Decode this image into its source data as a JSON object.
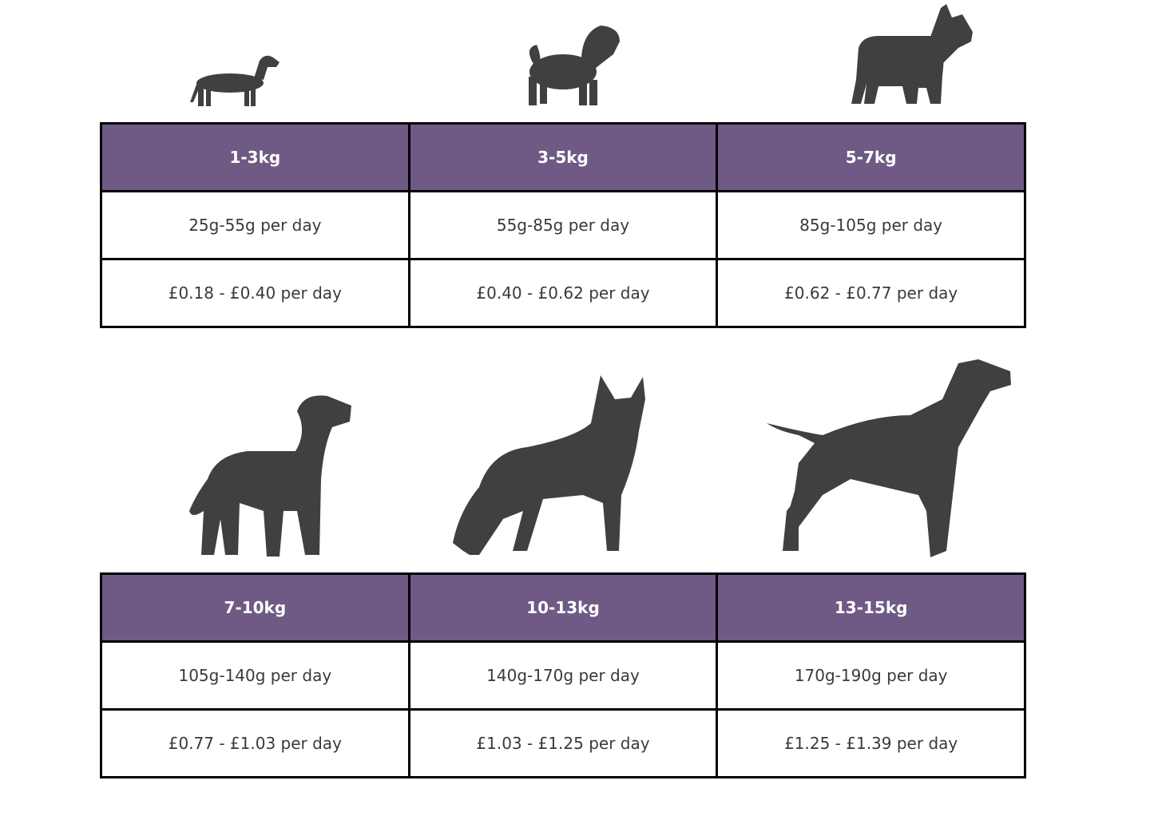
{
  "tables": [
    {
      "headers": [
        "1-3kg",
        "3-5kg",
        "5-7kg"
      ],
      "rows": [
        [
          "25g-55g per day",
          "55g-85g per day",
          "85g-105g per day"
        ],
        [
          "£0.18 - £0.40 per day",
          "£0.40 - £0.62 per day",
          "£0.62 - £0.77 per day"
        ]
      ]
    },
    {
      "headers": [
        "7-10kg",
        "10-13kg",
        "13-15kg"
      ],
      "rows": [
        [
          "105g-140g per day",
          "140g-170g per day",
          "170g-190g per day"
        ],
        [
          "£0.77 - £1.03 per day",
          "£1.03 - £1.25 per day",
          "£1.25 - £1.39 per day"
        ]
      ]
    }
  ]
}
